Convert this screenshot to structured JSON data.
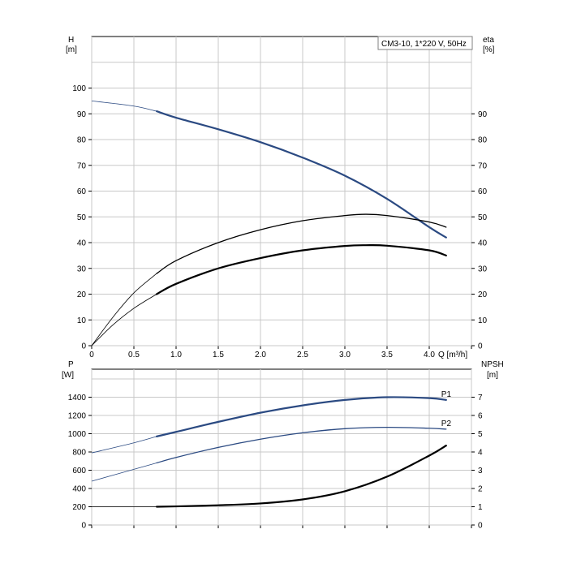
{
  "legend_box": "CM3-10, 1*220 V, 50Hz",
  "colors": {
    "blue": "#2b4a82",
    "black": "#000000",
    "grid": "#c8c8c8"
  },
  "chart_data": [
    {
      "type": "line",
      "id": "top",
      "left_axis": {
        "label": "H",
        "unit": "[m]",
        "ticks": [
          "0",
          "10",
          "20",
          "30",
          "40",
          "50",
          "60",
          "70",
          "80",
          "90",
          "100"
        ],
        "range": [
          0,
          100
        ]
      },
      "right_axis": {
        "label": "eta",
        "unit": "[%]",
        "ticks": [
          "0",
          "10",
          "20",
          "30",
          "40",
          "50",
          "60",
          "70",
          "80",
          "90"
        ],
        "range": [
          0,
          100
        ]
      },
      "x_axis": {
        "unit": "Q [m³/h]",
        "ticks": [
          "0",
          "0.5",
          "1.0",
          "1.5",
          "2.0",
          "2.5",
          "3.0",
          "3.5",
          "4.0"
        ],
        "range": [
          0,
          4.5
        ]
      },
      "grid": true,
      "series": [
        {
          "curve": "H",
          "color": "#2b4a82",
          "op_from": 0.77,
          "points": [
            [
              0,
              95
            ],
            [
              0.5,
              93
            ],
            [
              0.77,
              91
            ],
            [
              1.0,
              88.5
            ],
            [
              1.5,
              84
            ],
            [
              2.0,
              79
            ],
            [
              2.5,
              73
            ],
            [
              3.0,
              66
            ],
            [
              3.5,
              57
            ],
            [
              4.0,
              46
            ],
            [
              4.2,
              42
            ]
          ]
        },
        {
          "curve": "eta1",
          "color": "#000000",
          "op_from": 0.77,
          "points": [
            [
              0,
              0
            ],
            [
              0.25,
              11
            ],
            [
              0.5,
              20.5
            ],
            [
              0.77,
              28
            ],
            [
              1.0,
              33
            ],
            [
              1.5,
              40
            ],
            [
              2.0,
              45
            ],
            [
              2.5,
              48.5
            ],
            [
              3.0,
              50.5
            ],
            [
              3.25,
              51
            ],
            [
              3.5,
              50.5
            ],
            [
              4.0,
              48
            ],
            [
              4.2,
              46
            ]
          ]
        },
        {
          "curve": "eta2",
          "color": "#000000",
          "op_from": 0.77,
          "points": [
            [
              0,
              0
            ],
            [
              0.25,
              8
            ],
            [
              0.5,
              14.5
            ],
            [
              0.77,
              20
            ],
            [
              1.0,
              24
            ],
            [
              1.5,
              30
            ],
            [
              2.0,
              34
            ],
            [
              2.5,
              37
            ],
            [
              3.0,
              38.7
            ],
            [
              3.25,
              39
            ],
            [
              3.5,
              38.8
            ],
            [
              4.0,
              37
            ],
            [
              4.2,
              35
            ]
          ]
        }
      ]
    },
    {
      "type": "line",
      "id": "bottom",
      "left_axis": {
        "label": "P",
        "unit": "[W]",
        "ticks": [
          "0",
          "200",
          "400",
          "600",
          "800",
          "1000",
          "1200",
          "1400"
        ],
        "range": [
          0,
          1600
        ]
      },
      "right_axis": {
        "label": "NPSH",
        "unit": "[m]",
        "ticks": [
          "0",
          "1",
          "2",
          "3",
          "4",
          "5",
          "6",
          "7"
        ],
        "range": [
          0,
          8
        ]
      },
      "x_axis": {
        "range": [
          0,
          4.5
        ]
      },
      "grid": true,
      "series": [
        {
          "name": "P1",
          "color": "#2b4a82",
          "axis": "left",
          "op_from": 0.77,
          "points": [
            [
              0,
              790
            ],
            [
              0.5,
              900
            ],
            [
              0.77,
              970
            ],
            [
              1.0,
              1020
            ],
            [
              1.5,
              1130
            ],
            [
              2.0,
              1230
            ],
            [
              2.5,
              1310
            ],
            [
              3.0,
              1370
            ],
            [
              3.5,
              1400
            ],
            [
              4.0,
              1390
            ],
            [
              4.2,
              1370
            ]
          ]
        },
        {
          "name": "P2",
          "color": "#2b4a82",
          "axis": "left",
          "op_from": 0.77,
          "points": [
            [
              0,
              480
            ],
            [
              0.5,
              610
            ],
            [
              0.77,
              680
            ],
            [
              1.0,
              740
            ],
            [
              1.5,
              850
            ],
            [
              2.0,
              940
            ],
            [
              2.5,
              1010
            ],
            [
              3.0,
              1055
            ],
            [
              3.5,
              1070
            ],
            [
              4.0,
              1060
            ],
            [
              4.2,
              1050
            ]
          ]
        },
        {
          "curve": "NPSH",
          "color": "#000000",
          "axis": "right",
          "op_from": 0.77,
          "points": [
            [
              0,
              1
            ],
            [
              0.5,
              1
            ],
            [
              0.77,
              1
            ],
            [
              1.0,
              1.02
            ],
            [
              1.5,
              1.08
            ],
            [
              2.0,
              1.18
            ],
            [
              2.5,
              1.4
            ],
            [
              3.0,
              1.85
            ],
            [
              3.5,
              2.65
            ],
            [
              4.0,
              3.8
            ],
            [
              4.2,
              4.35
            ]
          ]
        }
      ]
    }
  ]
}
